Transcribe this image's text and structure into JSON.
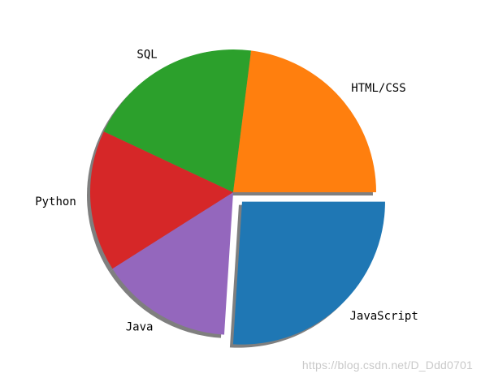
{
  "chart_data": {
    "type": "pie",
    "title": "",
    "slices": [
      {
        "label": "JavaScript",
        "value": 26,
        "color": "#1f77b4",
        "exploded": true
      },
      {
        "label": "Java",
        "value": 15,
        "color": "#9467bd",
        "exploded": false
      },
      {
        "label": "Python",
        "value": 16,
        "color": "#d62728",
        "exploded": false
      },
      {
        "label": "SQL",
        "value": 20,
        "color": "#2ca02c",
        "exploded": false
      },
      {
        "label": "HTML/CSS",
        "value": 23,
        "color": "#ff7f0e",
        "exploded": false
      }
    ],
    "start_angle_deg": 0,
    "direction": "clockwise",
    "shadow": true,
    "legend": "none"
  },
  "watermark": "https://blog.csdn.net/D_Ddd0701"
}
